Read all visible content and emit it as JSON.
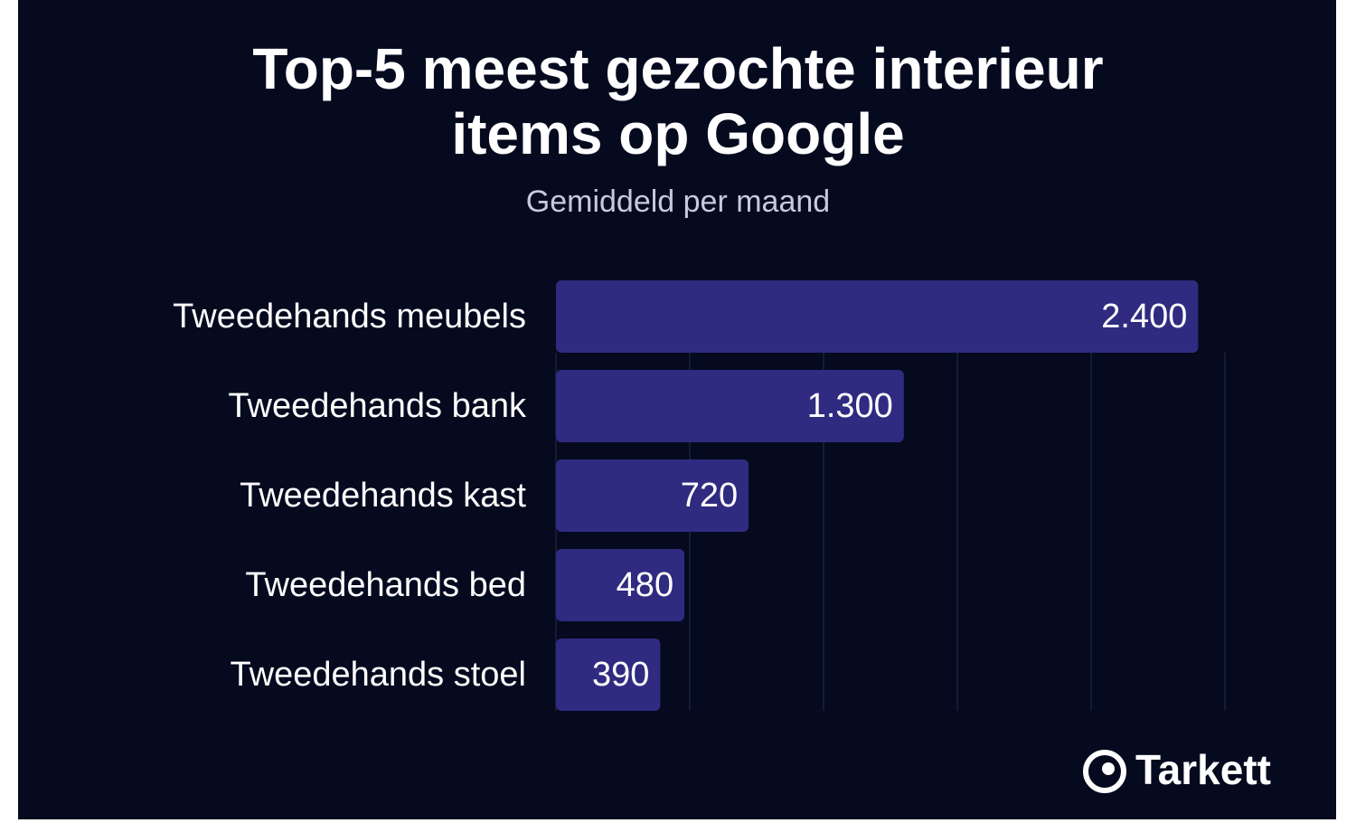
{
  "chart_data": {
    "type": "bar",
    "orientation": "horizontal",
    "title": "Top-5 meest gezochte interieur items op Google",
    "subtitle": "Gemiddeld per maand",
    "categories": [
      "Tweedehands meubels",
      "Tweedehands bank",
      "Tweedehands kast",
      "Tweedehands bed",
      "Tweedehands stoel"
    ],
    "values": [
      2400,
      1300,
      720,
      480,
      390
    ],
    "value_labels": [
      "2.400",
      "1.300",
      "720",
      "480",
      "390"
    ],
    "color": "#2e2b80",
    "xlim": [
      0,
      2500
    ],
    "xticks": [
      0,
      500,
      1000,
      1500,
      2000,
      2500
    ],
    "grid": true,
    "brand": "Tarkett"
  }
}
